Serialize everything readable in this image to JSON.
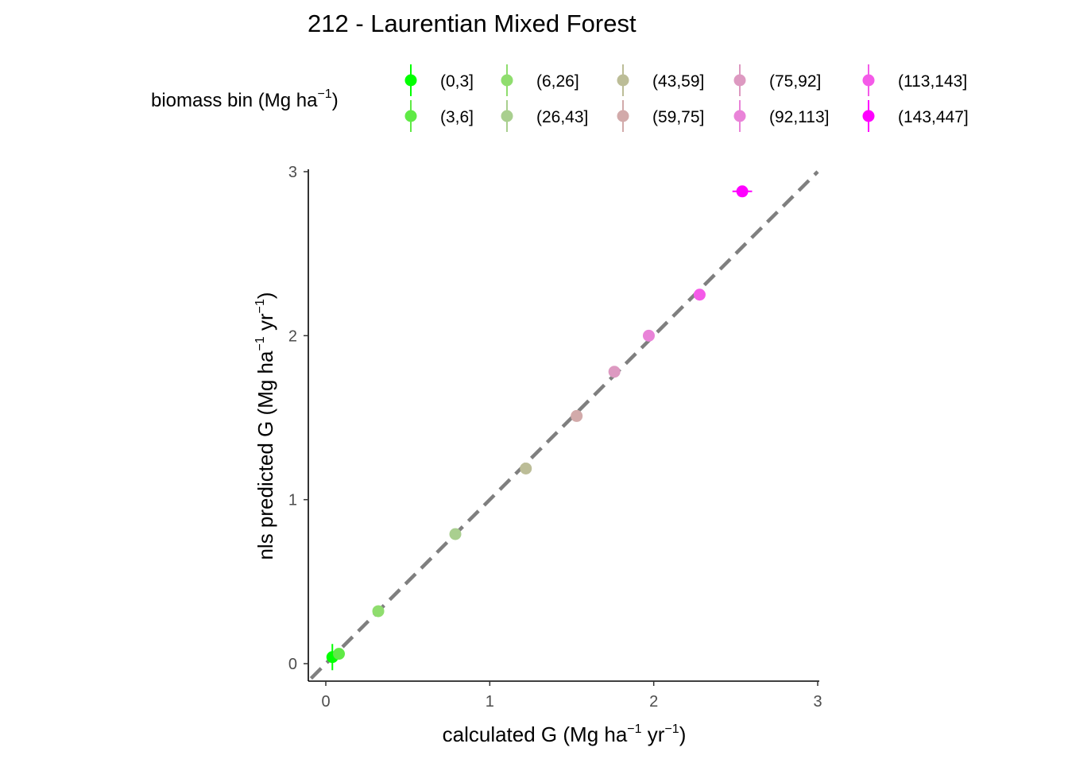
{
  "chart_data": {
    "type": "scatter",
    "title": "212 - Laurentian Mixed Forest",
    "xlabel": {
      "base": "calculated G (Mg ha",
      "sup1": "−1",
      "mid": " yr",
      "sup2": "−1",
      "end": ")"
    },
    "ylabel": {
      "base": "nls predicted G (Mg ha",
      "sup1": "−1",
      "mid": " yr",
      "sup2": "−1",
      "end": ")"
    },
    "xlim": [
      -0.11,
      3
    ],
    "ylim": [
      -0.11,
      3
    ],
    "xticks": [
      0,
      1,
      2,
      3
    ],
    "yticks": [
      0,
      1,
      2,
      3
    ],
    "reference_line": {
      "type": "identity",
      "style": "dashed",
      "color": "#7f7f7f"
    },
    "legend": {
      "title": {
        "base": "biomass bin (Mg ha",
        "sup": "−1",
        "end": ")"
      },
      "position": "top"
    },
    "series": [
      {
        "name": "(0,3]",
        "color": "#00ff00",
        "x": 0.04,
        "y": 0.04,
        "xerr": 0.01,
        "yerr": 0.08
      },
      {
        "name": "(3,6]",
        "color": "#5fea45",
        "x": 0.08,
        "y": 0.06,
        "xerr": 0.01,
        "yerr": 0.03
      },
      {
        "name": "(6,26]",
        "color": "#8fdd6e",
        "x": 0.32,
        "y": 0.32,
        "xerr": 0.01,
        "yerr": 0.02
      },
      {
        "name": "(26,43]",
        "color": "#a9cf8f",
        "x": 0.79,
        "y": 0.79,
        "xerr": 0.01,
        "yerr": 0.02
      },
      {
        "name": "(43,59]",
        "color": "#bcbd97",
        "x": 1.22,
        "y": 1.19,
        "xerr": 0.01,
        "yerr": 0.02
      },
      {
        "name": "(59,75]",
        "color": "#d2aaaa",
        "x": 1.53,
        "y": 1.51,
        "xerr": 0.01,
        "yerr": 0.02
      },
      {
        "name": "(75,92]",
        "color": "#dd99c1",
        "x": 1.76,
        "y": 1.78,
        "xerr": 0.01,
        "yerr": 0.02
      },
      {
        "name": "(92,113]",
        "color": "#e983d8",
        "x": 1.97,
        "y": 2.0,
        "xerr": 0.01,
        "yerr": 0.02
      },
      {
        "name": "(113,143]",
        "color": "#f45ae8",
        "x": 2.28,
        "y": 2.25,
        "xerr": 0.01,
        "yerr": 0.02
      },
      {
        "name": "(143,447]",
        "color": "#ff00ff",
        "x": 2.54,
        "y": 2.88,
        "xerr": 0.06,
        "yerr": 0.02
      }
    ]
  }
}
